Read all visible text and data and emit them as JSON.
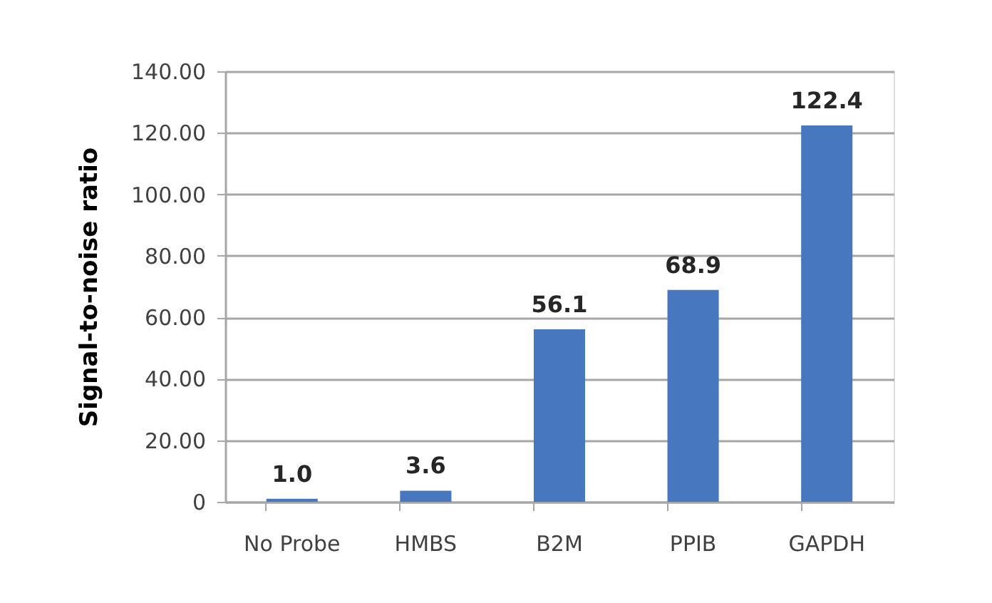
{
  "chart_data": {
    "type": "bar",
    "ylabel": "Signal-to-noise ratio",
    "categories": [
      "No Probe",
      "HMBS",
      "B2M",
      "PPIB",
      "GAPDH"
    ],
    "values": [
      1.0,
      3.6,
      56.1,
      68.9,
      122.4
    ],
    "value_labels": [
      "1.0",
      "3.6",
      "56.1",
      "68.9",
      "122.4"
    ],
    "color": "#4677bf",
    "ylim": [
      0,
      140
    ],
    "yticks": [
      0,
      {
        "value": 20,
        "label": "20.00"
      },
      {
        "value": 40,
        "label": "40.00"
      },
      {
        "value": 60,
        "label": "60.00"
      },
      {
        "value": 80,
        "label": "80.00"
      },
      {
        "value": 100,
        "label": "100.00"
      },
      {
        "value": 120,
        "label": "120.00"
      },
      {
        "value": 140,
        "label": "140.00"
      }
    ],
    "grid": "y"
  }
}
